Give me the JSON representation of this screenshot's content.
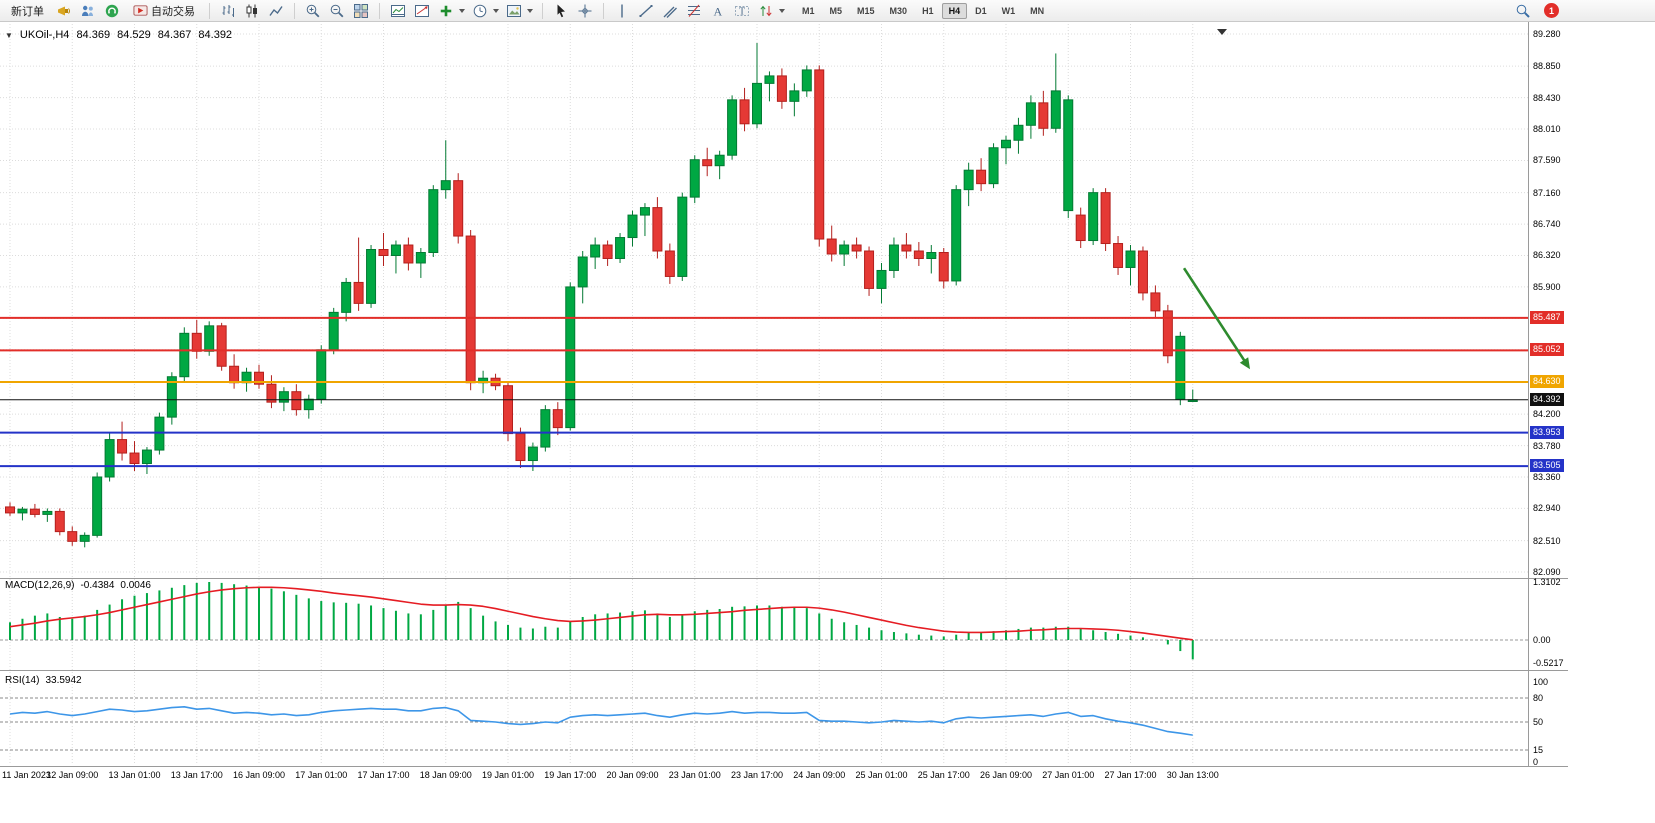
{
  "toolbar": {
    "new_order_label": "新订单",
    "auto_trading_label": "自动交易",
    "timeframes": [
      "M1",
      "M5",
      "M15",
      "M30",
      "H1",
      "H4",
      "D1",
      "W1",
      "MN"
    ],
    "active_timeframe": "H4",
    "notification_count": "1"
  },
  "chart": {
    "collapse_arrow": "▼",
    "title": "UKOil-,H4",
    "ohlc": {
      "open": "84.369",
      "high": "84.529",
      "low": "84.367",
      "close": "84.392"
    },
    "price_axis": {
      "plain_labels": [
        "89.280",
        "88.850",
        "88.430",
        "88.010",
        "87.590",
        "87.160",
        "86.740",
        "86.320",
        "85.900",
        "84.200",
        "83.780",
        "83.360",
        "82.940",
        "82.510",
        "82.090"
      ],
      "grid_prices": [
        89.28,
        88.85,
        88.43,
        88.01,
        87.59,
        87.16,
        86.74,
        86.32,
        85.9,
        85.48,
        85.06,
        84.63,
        84.2,
        83.78,
        83.36,
        82.94,
        82.51,
        82.09
      ],
      "boxed_labels": [
        {
          "text": "85.487",
          "price": 85.487,
          "bg": "#e22e29",
          "fg": "#ffffff"
        },
        {
          "text": "85.052",
          "price": 85.052,
          "bg": "#e22e29",
          "fg": "#ffffff"
        },
        {
          "text": "84.630",
          "price": 84.63,
          "bg": "#f0a500",
          "fg": "#ffffff"
        },
        {
          "text": "84.392",
          "price": 84.392,
          "bg": "#111111",
          "fg": "#ffffff"
        },
        {
          "text": "83.953",
          "price": 83.953,
          "bg": "#2433c8",
          "fg": "#ffffff"
        },
        {
          "text": "83.505",
          "price": 83.505,
          "bg": "#2433c8",
          "fg": "#ffffff"
        }
      ]
    },
    "hlines": [
      {
        "price": 85.487,
        "color": "#e22e29",
        "width": 2
      },
      {
        "price": 85.052,
        "color": "#e22e29",
        "width": 2
      },
      {
        "price": 84.63,
        "color": "#f0a500",
        "width": 2
      },
      {
        "price": 84.392,
        "color": "#111111",
        "width": 1
      },
      {
        "price": 83.953,
        "color": "#2433c8",
        "width": 2
      },
      {
        "price": 83.505,
        "color": "#2433c8",
        "width": 2
      }
    ],
    "time_axis": [
      "11 Jan 2023",
      "12 Jan 09:00",
      "13 Jan 01:00",
      "13 Jan 17:00",
      "16 Jan 09:00",
      "17 Jan 01:00",
      "17 Jan 17:00",
      "18 Jan 09:00",
      "19 Jan 01:00",
      "19 Jan 17:00",
      "20 Jan 09:00",
      "23 Jan 01:00",
      "23 Jan 17:00",
      "24 Jan 09:00",
      "25 Jan 01:00",
      "25 Jan 17:00",
      "26 Jan 09:00",
      "27 Jan 01:00",
      "27 Jan 17:00",
      "30 Jan 13:00"
    ]
  },
  "chart_data": {
    "type": "candlestick",
    "symbol": "UKOil-",
    "timeframe": "H4",
    "price_range": [
      82.09,
      89.28
    ],
    "colors": {
      "bull": "#00a843",
      "bull_border": "#037a33",
      "bear": "#e53935",
      "bear_border": "#b3201d",
      "macd_histogram": "#00a843",
      "macd_signal": "#e51c23",
      "rsi_line": "#3d96e8",
      "arrow": "#2e8b2e"
    },
    "candles": [
      [
        82.96,
        83.02,
        82.84,
        82.88
      ],
      [
        82.88,
        82.96,
        82.78,
        82.93
      ],
      [
        82.93,
        83.0,
        82.82,
        82.86
      ],
      [
        82.86,
        82.94,
        82.76,
        82.9
      ],
      [
        82.9,
        82.94,
        82.58,
        82.63
      ],
      [
        82.63,
        82.7,
        82.44,
        82.5
      ],
      [
        82.5,
        82.62,
        82.42,
        82.58
      ],
      [
        82.58,
        83.42,
        82.55,
        83.36
      ],
      [
        83.36,
        83.96,
        83.3,
        83.86
      ],
      [
        83.86,
        84.1,
        83.58,
        83.68
      ],
      [
        83.68,
        83.84,
        83.44,
        83.54
      ],
      [
        83.54,
        83.76,
        83.4,
        83.72
      ],
      [
        83.72,
        84.22,
        83.66,
        84.16
      ],
      [
        84.16,
        84.76,
        84.06,
        84.7
      ],
      [
        84.7,
        85.36,
        84.64,
        85.28
      ],
      [
        85.28,
        85.46,
        84.94,
        85.04
      ],
      [
        85.04,
        85.44,
        84.98,
        85.38
      ],
      [
        85.38,
        85.42,
        84.78,
        84.84
      ],
      [
        84.84,
        85.0,
        84.54,
        84.62
      ],
      [
        84.62,
        84.82,
        84.5,
        84.76
      ],
      [
        84.76,
        84.86,
        84.54,
        84.6
      ],
      [
        84.6,
        84.72,
        84.28,
        84.36
      ],
      [
        84.36,
        84.56,
        84.24,
        84.5
      ],
      [
        84.5,
        84.6,
        84.18,
        84.26
      ],
      [
        84.26,
        84.46,
        84.14,
        84.4
      ],
      [
        84.4,
        85.12,
        84.34,
        85.06
      ],
      [
        85.06,
        85.62,
        85.0,
        85.56
      ],
      [
        85.56,
        86.02,
        85.44,
        85.96
      ],
      [
        85.96,
        86.56,
        85.58,
        85.68
      ],
      [
        85.68,
        86.46,
        85.62,
        86.4
      ],
      [
        86.4,
        86.62,
        86.18,
        86.32
      ],
      [
        86.32,
        86.52,
        86.08,
        86.46
      ],
      [
        86.46,
        86.56,
        86.12,
        86.22
      ],
      [
        86.22,
        86.42,
        86.02,
        86.36
      ],
      [
        86.36,
        87.26,
        86.3,
        87.2
      ],
      [
        87.2,
        87.86,
        87.08,
        87.32
      ],
      [
        87.32,
        87.42,
        86.48,
        86.58
      ],
      [
        86.58,
        86.66,
        84.52,
        84.62
      ],
      [
        84.62,
        84.78,
        84.48,
        84.68
      ],
      [
        84.68,
        84.74,
        84.52,
        84.58
      ],
      [
        84.58,
        84.64,
        83.84,
        83.94
      ],
      [
        83.94,
        84.02,
        83.48,
        83.58
      ],
      [
        83.58,
        83.82,
        83.44,
        83.76
      ],
      [
        83.76,
        84.32,
        83.7,
        84.26
      ],
      [
        84.26,
        84.36,
        83.92,
        84.02
      ],
      [
        84.02,
        85.96,
        83.98,
        85.9
      ],
      [
        85.9,
        86.38,
        85.68,
        86.3
      ],
      [
        86.3,
        86.56,
        86.14,
        86.46
      ],
      [
        86.46,
        86.52,
        86.18,
        86.28
      ],
      [
        86.28,
        86.62,
        86.22,
        86.56
      ],
      [
        86.56,
        86.92,
        86.44,
        86.86
      ],
      [
        86.86,
        87.02,
        86.58,
        86.96
      ],
      [
        86.96,
        87.1,
        86.28,
        86.38
      ],
      [
        86.38,
        86.48,
        85.94,
        86.04
      ],
      [
        86.04,
        87.16,
        85.98,
        87.1
      ],
      [
        87.1,
        87.66,
        87.02,
        87.6
      ],
      [
        87.6,
        87.76,
        87.38,
        87.52
      ],
      [
        87.52,
        87.72,
        87.34,
        87.66
      ],
      [
        87.66,
        88.46,
        87.6,
        88.4
      ],
      [
        88.4,
        88.56,
        87.98,
        88.08
      ],
      [
        88.08,
        89.16,
        88.02,
        88.62
      ],
      [
        88.62,
        88.78,
        88.38,
        88.72
      ],
      [
        88.72,
        88.82,
        88.28,
        88.38
      ],
      [
        88.38,
        88.62,
        88.18,
        88.52
      ],
      [
        88.52,
        88.86,
        88.44,
        88.8
      ],
      [
        88.8,
        88.86,
        86.44,
        86.54
      ],
      [
        86.54,
        86.72,
        86.24,
        86.34
      ],
      [
        86.34,
        86.52,
        86.18,
        86.46
      ],
      [
        86.46,
        86.56,
        86.28,
        86.38
      ],
      [
        86.38,
        86.44,
        85.78,
        85.88
      ],
      [
        85.88,
        86.22,
        85.68,
        86.12
      ],
      [
        86.12,
        86.56,
        86.02,
        86.46
      ],
      [
        86.46,
        86.62,
        86.28,
        86.38
      ],
      [
        86.38,
        86.5,
        86.18,
        86.28
      ],
      [
        86.28,
        86.46,
        86.08,
        86.36
      ],
      [
        86.36,
        86.42,
        85.88,
        85.98
      ],
      [
        85.98,
        87.26,
        85.92,
        87.2
      ],
      [
        87.2,
        87.56,
        86.98,
        87.46
      ],
      [
        87.46,
        87.62,
        87.18,
        87.28
      ],
      [
        87.28,
        87.82,
        87.22,
        87.76
      ],
      [
        87.76,
        87.92,
        87.54,
        87.86
      ],
      [
        87.86,
        88.16,
        87.68,
        88.06
      ],
      [
        88.06,
        88.46,
        87.88,
        88.36
      ],
      [
        88.36,
        88.52,
        87.92,
        88.02
      ],
      [
        88.02,
        89.02,
        87.96,
        88.52
      ],
      [
        86.92,
        88.46,
        86.82,
        88.4
      ],
      [
        86.86,
        86.96,
        86.42,
        86.52
      ],
      [
        86.52,
        87.22,
        86.46,
        87.16
      ],
      [
        87.16,
        87.22,
        86.38,
        86.48
      ],
      [
        86.48,
        86.58,
        86.06,
        86.16
      ],
      [
        86.16,
        86.46,
        85.92,
        86.38
      ],
      [
        86.38,
        86.44,
        85.72,
        85.82
      ],
      [
        85.82,
        85.92,
        85.48,
        85.58
      ],
      [
        85.58,
        85.66,
        84.88,
        84.98
      ],
      [
        84.4,
        85.3,
        84.32,
        85.24
      ],
      [
        84.369,
        84.529,
        84.367,
        84.392
      ]
    ],
    "macd": {
      "label": "MACD(12,26,9)",
      "main_value": "-0.4384",
      "signal_value": "0.0046",
      "scale_labels": [
        "1.3102",
        "0.00",
        "-0.5217"
      ],
      "histogram": [
        0.4,
        0.48,
        0.55,
        0.6,
        0.52,
        0.48,
        0.55,
        0.68,
        0.8,
        0.92,
        1.0,
        1.06,
        1.12,
        1.18,
        1.24,
        1.29,
        1.31,
        1.29,
        1.26,
        1.23,
        1.2,
        1.16,
        1.1,
        1.02,
        0.94,
        0.88,
        0.85,
        0.84,
        0.82,
        0.78,
        0.72,
        0.66,
        0.6,
        0.58,
        0.68,
        0.8,
        0.86,
        0.72,
        0.55,
        0.42,
        0.34,
        0.28,
        0.26,
        0.3,
        0.28,
        0.42,
        0.52,
        0.58,
        0.6,
        0.62,
        0.65,
        0.67,
        0.6,
        0.52,
        0.58,
        0.65,
        0.68,
        0.7,
        0.75,
        0.76,
        0.78,
        0.78,
        0.75,
        0.73,
        0.72,
        0.6,
        0.48,
        0.4,
        0.34,
        0.28,
        0.22,
        0.18,
        0.15,
        0.12,
        0.1,
        0.08,
        0.12,
        0.16,
        0.18,
        0.2,
        0.22,
        0.25,
        0.28,
        0.28,
        0.3,
        0.3,
        0.26,
        0.22,
        0.18,
        0.14,
        0.1,
        0.06,
        0.0,
        -0.1,
        -0.25,
        -0.4384
      ],
      "signal": [
        0.3,
        0.34,
        0.38,
        0.43,
        0.47,
        0.5,
        0.53,
        0.57,
        0.62,
        0.68,
        0.74,
        0.8,
        0.86,
        0.92,
        0.98,
        1.04,
        1.09,
        1.13,
        1.16,
        1.18,
        1.19,
        1.19,
        1.18,
        1.16,
        1.13,
        1.1,
        1.06,
        1.03,
        1.0,
        0.97,
        0.93,
        0.89,
        0.85,
        0.81,
        0.79,
        0.79,
        0.8,
        0.79,
        0.76,
        0.71,
        0.65,
        0.59,
        0.53,
        0.48,
        0.44,
        0.42,
        0.43,
        0.45,
        0.48,
        0.51,
        0.54,
        0.57,
        0.58,
        0.57,
        0.57,
        0.58,
        0.6,
        0.62,
        0.64,
        0.67,
        0.69,
        0.71,
        0.73,
        0.74,
        0.74,
        0.72,
        0.68,
        0.63,
        0.57,
        0.51,
        0.45,
        0.39,
        0.33,
        0.28,
        0.24,
        0.2,
        0.18,
        0.17,
        0.17,
        0.18,
        0.19,
        0.2,
        0.22,
        0.23,
        0.25,
        0.26,
        0.26,
        0.25,
        0.24,
        0.22,
        0.19,
        0.16,
        0.12,
        0.08,
        0.04,
        0.0046
      ]
    },
    "rsi": {
      "label": "RSI(14)",
      "value": "33.5942",
      "scale_labels": [
        "100",
        "80",
        "50",
        "15",
        "0"
      ],
      "levels": [
        80,
        50,
        15
      ],
      "values": [
        60,
        62,
        61,
        63,
        60,
        58,
        60,
        63,
        66,
        65,
        63,
        64,
        66,
        68,
        69,
        66,
        67,
        64,
        61,
        62,
        61,
        59,
        60,
        58,
        59,
        62,
        64,
        65,
        66,
        67,
        66,
        66,
        64,
        64,
        67,
        68,
        64,
        52,
        51,
        50,
        48,
        47,
        48,
        50,
        49,
        56,
        58,
        59,
        58,
        59,
        60,
        61,
        58,
        56,
        59,
        61,
        60,
        61,
        63,
        61,
        62,
        62,
        61,
        61,
        62,
        52,
        51,
        51,
        50,
        49,
        50,
        52,
        51,
        50,
        51,
        49,
        54,
        56,
        55,
        56,
        57,
        58,
        59,
        57,
        60,
        62,
        57,
        58,
        54,
        51,
        49,
        46,
        42,
        38,
        36,
        33.59
      ]
    },
    "arrow_annotation": {
      "from_index": 94.3,
      "from_price": 86.15,
      "to_index": 99.6,
      "to_price": 84.8
    }
  }
}
